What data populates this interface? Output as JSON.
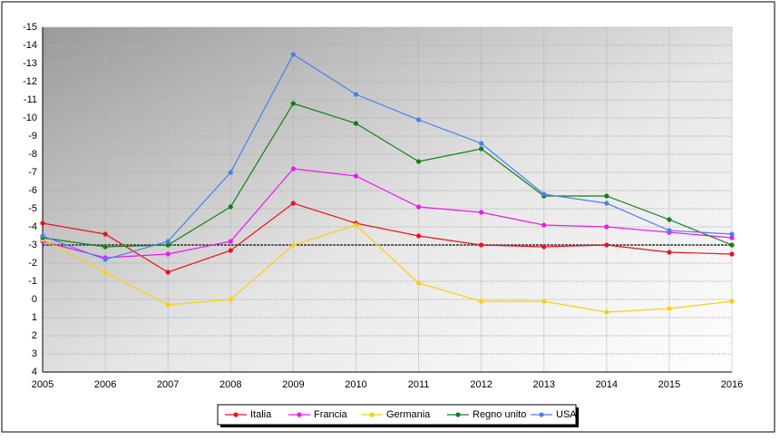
{
  "chart_data": {
    "type": "line",
    "categories": [
      "2005",
      "2006",
      "2007",
      "2008",
      "2009",
      "2010",
      "2011",
      "2012",
      "2013",
      "2014",
      "2015",
      "2016"
    ],
    "series": [
      {
        "name": "Italia",
        "color": "#e8141c",
        "values": [
          -4.2,
          -3.6,
          -1.5,
          -2.7,
          -5.3,
          -4.2,
          -3.5,
          -3.0,
          -2.9,
          -3.0,
          -2.6,
          -2.5
        ]
      },
      {
        "name": "Francia",
        "color": "#f018f0",
        "values": [
          -3.2,
          -2.3,
          -2.5,
          -3.2,
          -7.2,
          -6.8,
          -5.1,
          -4.8,
          -4.1,
          -4.0,
          -3.7,
          -3.4
        ]
      },
      {
        "name": "Germania",
        "color": "#f8d010",
        "values": [
          -3.3,
          -1.5,
          0.3,
          0,
          -3.0,
          -4.1,
          -0.9,
          0.1,
          0.1,
          0.7,
          0.5,
          0.1
        ]
      },
      {
        "name": "Regno unito",
        "color": "#108018",
        "values": [
          -3.4,
          -2.9,
          -3.0,
          -5.1,
          -10.8,
          -9.7,
          -7.6,
          -8.3,
          -5.7,
          -5.7,
          -4.4,
          -3.0
        ]
      },
      {
        "name": "USA",
        "color": "#4a80f0",
        "values": [
          -3.5,
          -2.2,
          -3.2,
          -7.0,
          -13.5,
          -11.3,
          -9.9,
          -8.6,
          -5.8,
          -5.3,
          -3.8,
          -3.6
        ]
      }
    ],
    "ylim": [
      4,
      -15
    ],
    "yticks": [
      -15,
      -14,
      -13,
      -12,
      -11,
      -10,
      -9,
      -8,
      -7,
      -6,
      -5,
      -4,
      -3,
      -2,
      -1,
      0,
      1,
      2,
      3,
      4
    ],
    "reference_line": -3,
    "grid": true,
    "legend": "bottom"
  }
}
